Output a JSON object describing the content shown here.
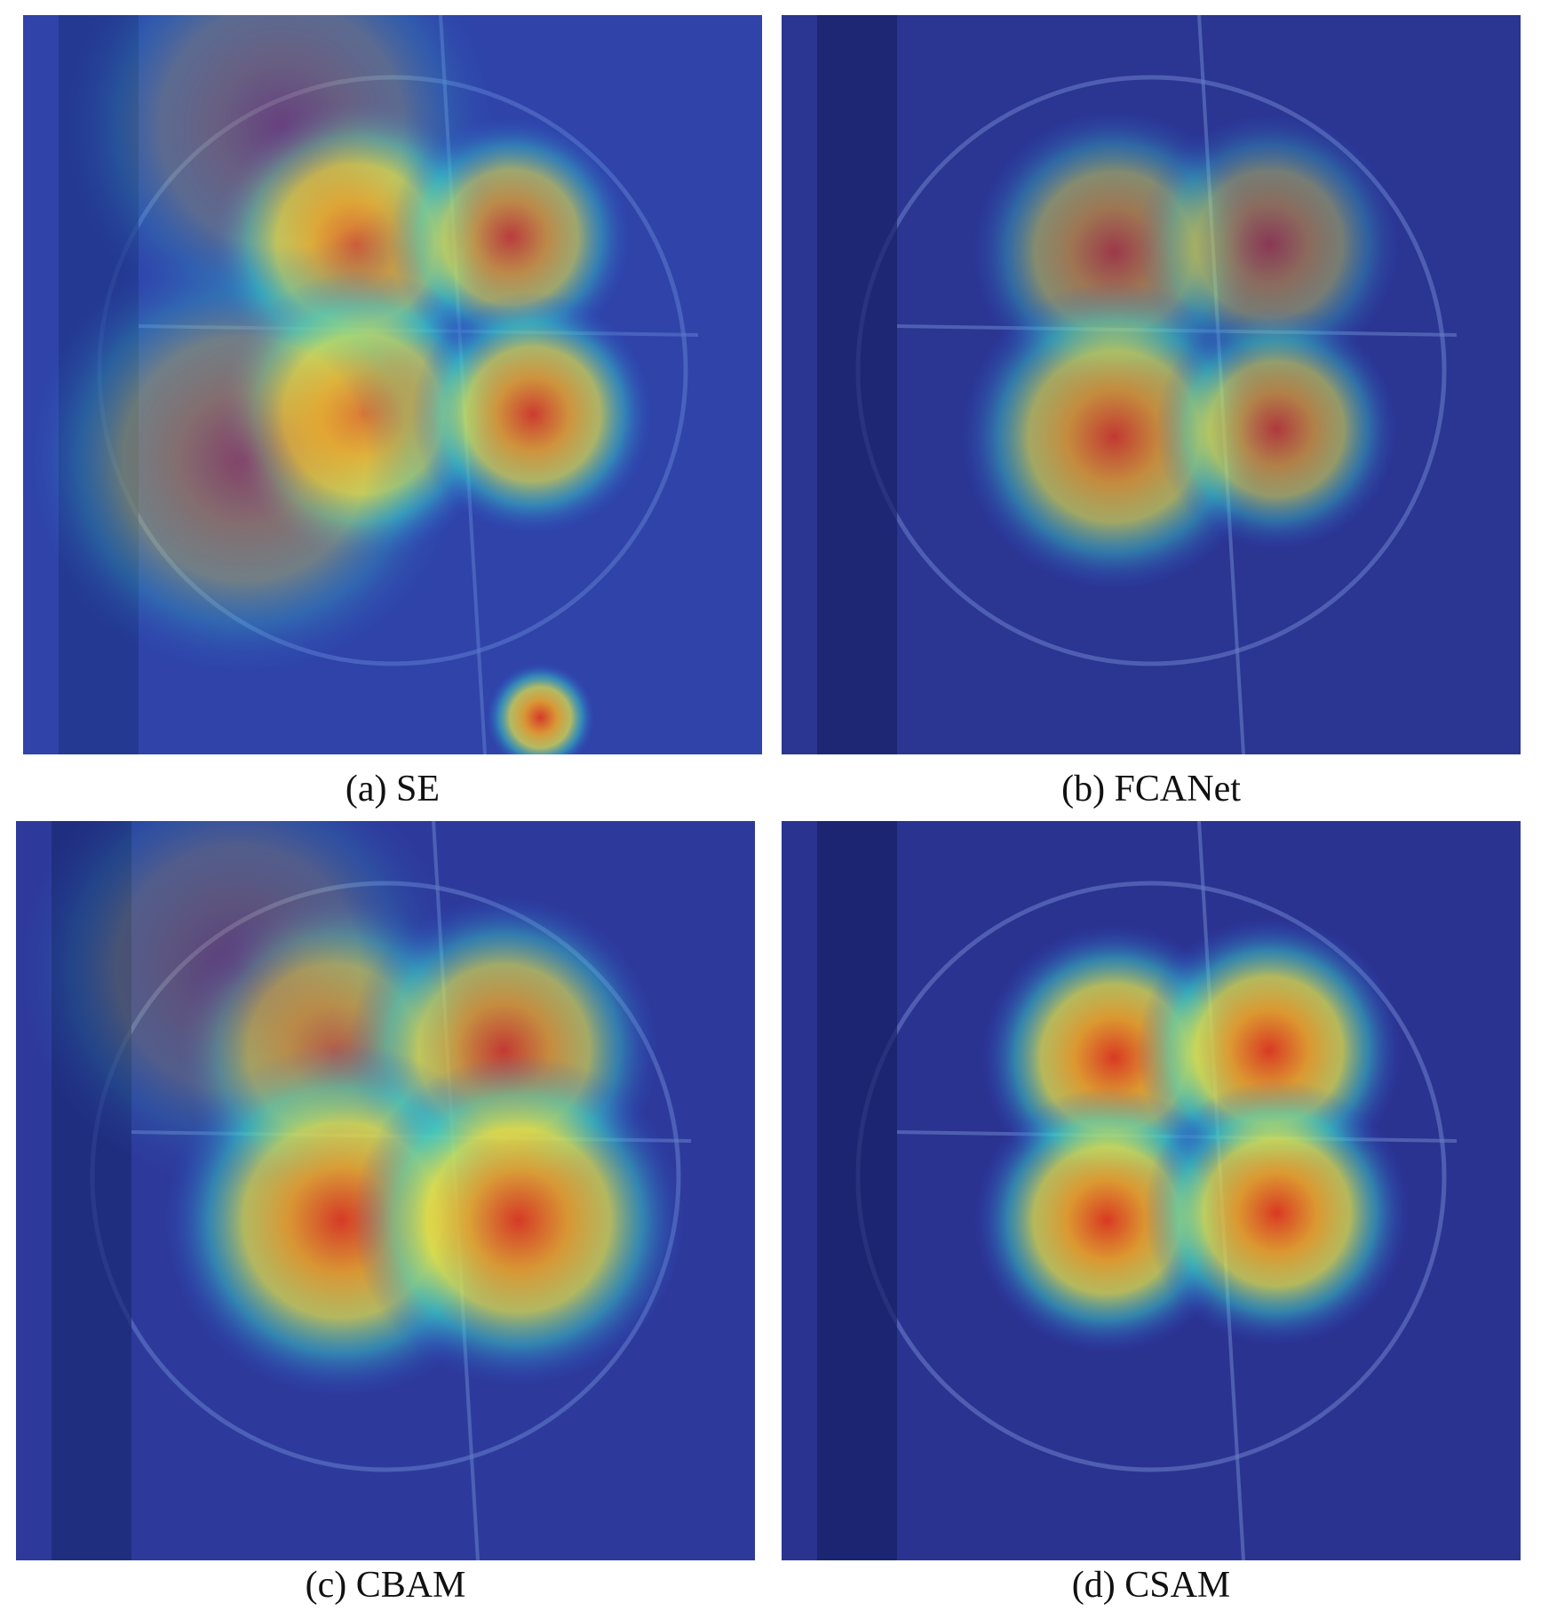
{
  "panels": [
    {
      "caption": "(a) SE"
    },
    {
      "caption": "(b) FCANet"
    },
    {
      "caption": "(c) CBAM"
    },
    {
      "caption": "(d) CSAM"
    }
  ]
}
